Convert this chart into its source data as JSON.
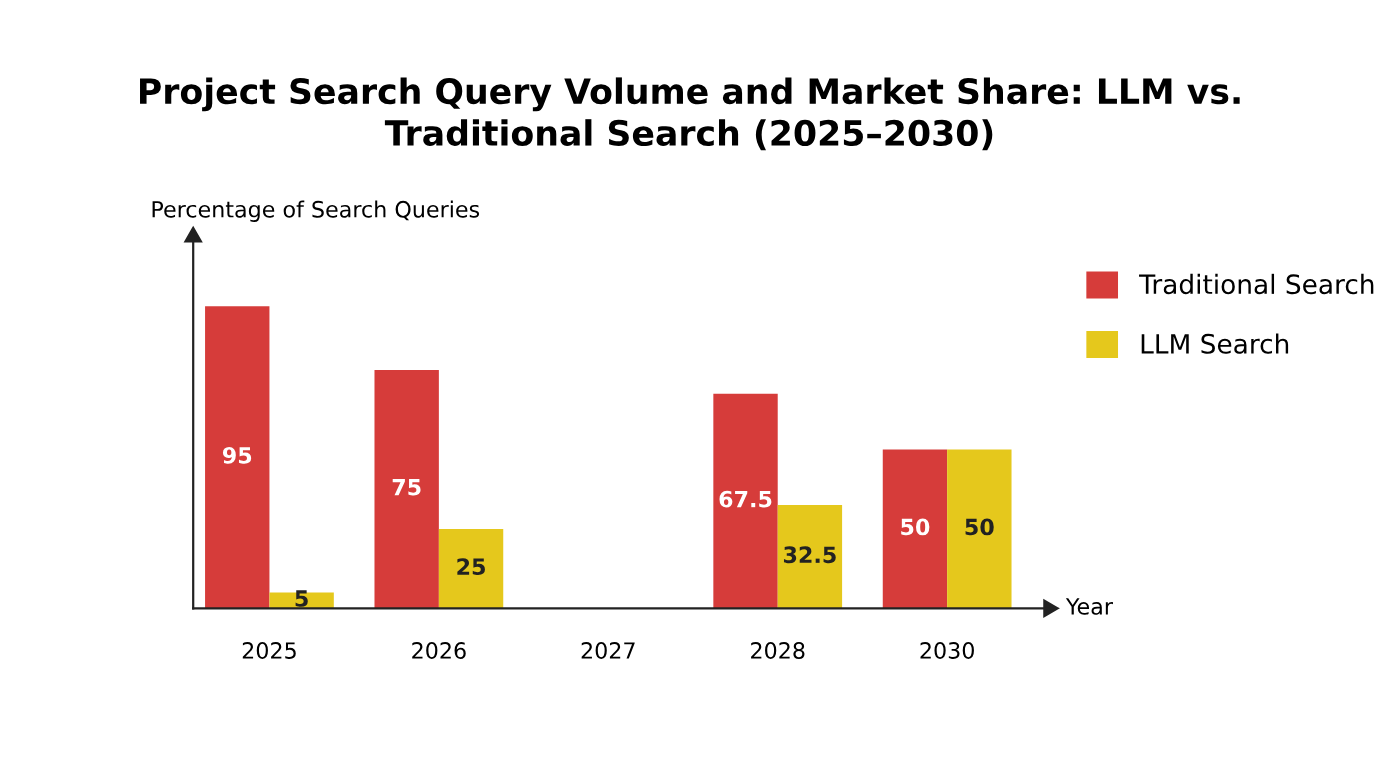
{
  "chart_data": {
    "type": "bar",
    "title": "Project Search Query Volume and Market Share: LLM vs.\nTraditional Search (2025–2030)",
    "xlabel": "Year",
    "ylabel": "Percentage of Search Queries",
    "categories": [
      "2025",
      "2026",
      "2027",
      "2028",
      "2030"
    ],
    "series": [
      {
        "name": "Traditional Search",
        "color": "#d63c3a",
        "values": [
          95,
          75,
          null,
          67.5,
          50
        ]
      },
      {
        "name": "LLM Search",
        "color": "#e5c81c",
        "values": [
          5,
          25,
          null,
          32.5,
          50
        ]
      }
    ],
    "data_labels": true,
    "legend": "top right",
    "grid": false
  }
}
